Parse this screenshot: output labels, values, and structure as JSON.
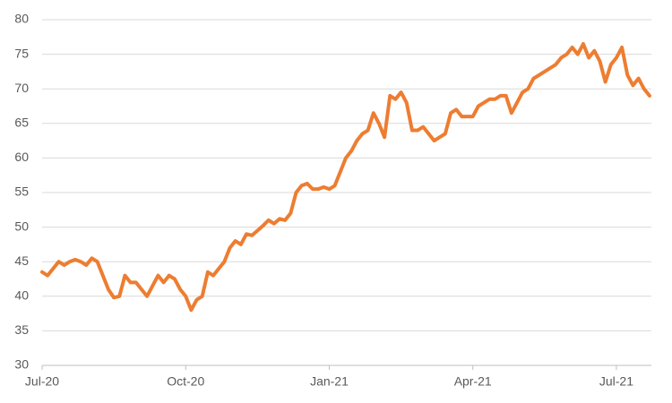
{
  "chart_data": {
    "type": "line",
    "categories": [
      "Jul-20",
      null,
      null,
      null,
      null,
      null,
      null,
      null,
      null,
      null,
      null,
      null,
      null,
      null,
      null,
      null,
      null,
      null,
      null,
      null,
      null,
      null,
      null,
      null,
      null,
      null,
      "Oct-20",
      null,
      null,
      null,
      null,
      null,
      null,
      null,
      null,
      null,
      null,
      null,
      null,
      null,
      null,
      null,
      null,
      null,
      null,
      null,
      null,
      null,
      null,
      null,
      null,
      null,
      "Jan-21",
      null,
      null,
      null,
      null,
      null,
      null,
      null,
      null,
      null,
      null,
      null,
      null,
      null,
      null,
      null,
      null,
      null,
      null,
      null,
      null,
      null,
      null,
      null,
      null,
      null,
      "Apr-21",
      null,
      null,
      null,
      null,
      null,
      null,
      null,
      null,
      null,
      null,
      null,
      null,
      null,
      null,
      null,
      null,
      null,
      null,
      null,
      null,
      null,
      null,
      null,
      null,
      null,
      "Jul-21",
      null,
      null,
      null,
      null,
      null,
      null
    ],
    "series": [
      {
        "color": "#ed7d31",
        "values": [
          43.5,
          43,
          44,
          45,
          44.5,
          45,
          45.3,
          45,
          44.5,
          45.5,
          45,
          43,
          41,
          39.8,
          40,
          43,
          42,
          42,
          41,
          40,
          41.5,
          43,
          42,
          43,
          42.5,
          41,
          40,
          38,
          39.5,
          40,
          43.5,
          43,
          44,
          45,
          47,
          48,
          47.5,
          49,
          48.8,
          49.5,
          50.2,
          51,
          50.5,
          51.2,
          51,
          52,
          55,
          56,
          56.3,
          55.5,
          55.5,
          55.8,
          55.5,
          56,
          58,
          60,
          61,
          62.5,
          63.5,
          64,
          66.5,
          65,
          63,
          69,
          68.5,
          69.5,
          68,
          64,
          64,
          64.5,
          63.5,
          62.5,
          63,
          63.5,
          66.5,
          67,
          66,
          66,
          66,
          67.5,
          68,
          68.5,
          68.5,
          69,
          69,
          66.5,
          68,
          69.5,
          70,
          71.5,
          72,
          72.5,
          73,
          73.5,
          74.5,
          75,
          76,
          75,
          76.5,
          74.5,
          75.5,
          74,
          71,
          73.5,
          74.5,
          76,
          72,
          70.5,
          71.5,
          70,
          69
        ]
      }
    ],
    "ylim": [
      30,
      80
    ],
    "yticks": [
      30,
      35,
      40,
      45,
      50,
      55,
      60,
      65,
      70,
      75,
      80
    ],
    "grid": true
  }
}
